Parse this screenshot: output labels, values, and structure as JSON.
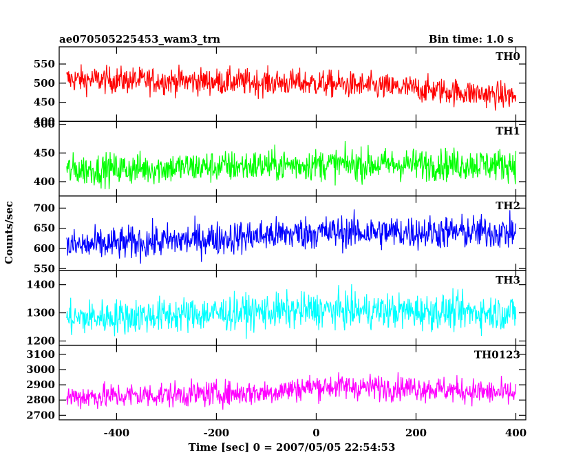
{
  "header": {
    "title": "ae070505225453_wam3_trn",
    "bin_time": "Bin time: 1.0 s"
  },
  "chart_data": {
    "type": "line",
    "xlabel": "Time [sec] 0 = 2007/05/05 22:54:53",
    "ylabel": "Counts/sec",
    "xlim": [
      -515,
      420
    ],
    "x_ticks": [
      -400,
      -200,
      0,
      200,
      400
    ],
    "x_range_data": [
      -500,
      400
    ],
    "panels": [
      {
        "name": "TH0",
        "color": "#ff0000",
        "ylim": [
          400,
          595
        ],
        "y_ticks": [
          400,
          450,
          500,
          550
        ],
        "levels": [
          {
            "x": -500,
            "y": 510
          },
          {
            "x": 0,
            "y": 500
          },
          {
            "x": 200,
            "y": 485
          },
          {
            "x": 400,
            "y": 465
          }
        ],
        "amp": 25
      },
      {
        "name": "TH1",
        "color": "#00ff00",
        "ylim": [
          375,
          505
        ],
        "y_ticks": [
          400,
          450,
          500
        ],
        "levels": [
          {
            "x": -500,
            "y": 420
          },
          {
            "x": 0,
            "y": 430
          },
          {
            "x": 400,
            "y": 430
          }
        ],
        "amp": 20
      },
      {
        "name": "TH2",
        "color": "#0000ff",
        "ylim": [
          545,
          730
        ],
        "y_ticks": [
          550,
          600,
          650,
          700
        ],
        "levels": [
          {
            "x": -500,
            "y": 605
          },
          {
            "x": -200,
            "y": 625
          },
          {
            "x": 0,
            "y": 640
          },
          {
            "x": 400,
            "y": 640
          }
        ],
        "amp": 30
      },
      {
        "name": "TH3",
        "color": "#00ffff",
        "ylim": [
          1185,
          1450
        ],
        "y_ticks": [
          1200,
          1300,
          1400
        ],
        "levels": [
          {
            "x": -500,
            "y": 1280
          },
          {
            "x": 0,
            "y": 1310
          },
          {
            "x": 400,
            "y": 1300
          }
        ],
        "amp": 45
      },
      {
        "name": "TH0123",
        "color": "#ff00ff",
        "ylim": [
          2670,
          3160
        ],
        "y_ticks": [
          2700,
          2800,
          2900,
          3000,
          3100
        ],
        "levels": [
          {
            "x": -500,
            "y": 2820
          },
          {
            "x": -100,
            "y": 2850
          },
          {
            "x": 0,
            "y": 2890
          },
          {
            "x": 200,
            "y": 2880
          },
          {
            "x": 400,
            "y": 2840
          }
        ],
        "amp": 60
      }
    ]
  }
}
